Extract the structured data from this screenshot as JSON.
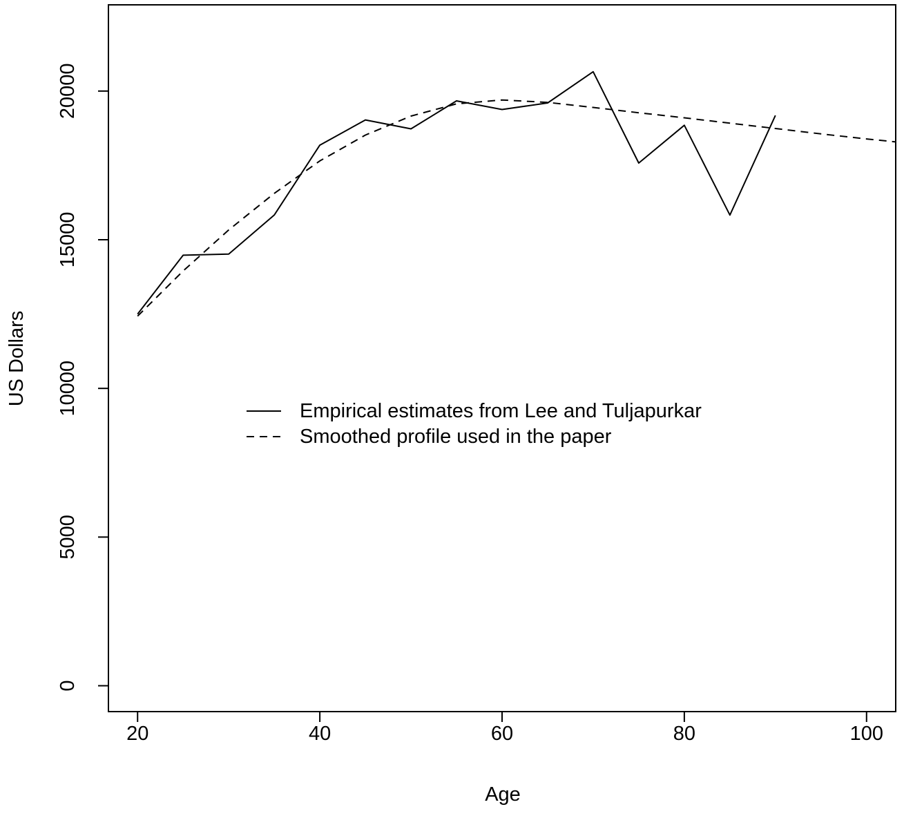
{
  "chart_data": {
    "type": "line",
    "xlabel": "Age",
    "ylabel": "US Dollars",
    "xlim": [
      16.8,
      103.2
    ],
    "ylim": [
      -870,
      22900
    ],
    "x_ticks": [
      20,
      40,
      60,
      80,
      100
    ],
    "y_ticks": [
      0,
      5000,
      10000,
      15000,
      20000
    ],
    "x_tick_labels": [
      "20",
      "40",
      "60",
      "80",
      "100"
    ],
    "y_tick_labels": [
      "0",
      "5000",
      "10000",
      "15000",
      "20000"
    ],
    "grid": false,
    "legend_position": "center",
    "series": [
      {
        "name": "Empirical estimates from Lee and Tuljapurkar",
        "style": "solid",
        "x": [
          20,
          25,
          30,
          35,
          40,
          45,
          50,
          55,
          60,
          65,
          70,
          75,
          80,
          85,
          90
        ],
        "y": [
          12500,
          14480,
          14520,
          15830,
          18180,
          19030,
          18730,
          19670,
          19380,
          19600,
          20650,
          17580,
          18850,
          15830,
          19180
        ]
      },
      {
        "name": "Smoothed profile used in the paper",
        "style": "dashed",
        "x": [
          20,
          25,
          30,
          35,
          40,
          45,
          50,
          55,
          60,
          65,
          70,
          75,
          80,
          85,
          90,
          95,
          100,
          103.2
        ],
        "y": [
          12430,
          13950,
          15330,
          16560,
          17650,
          18520,
          19160,
          19570,
          19700,
          19620,
          19450,
          19270,
          19100,
          18920,
          18740,
          18560,
          18390,
          18290
        ]
      }
    ]
  }
}
